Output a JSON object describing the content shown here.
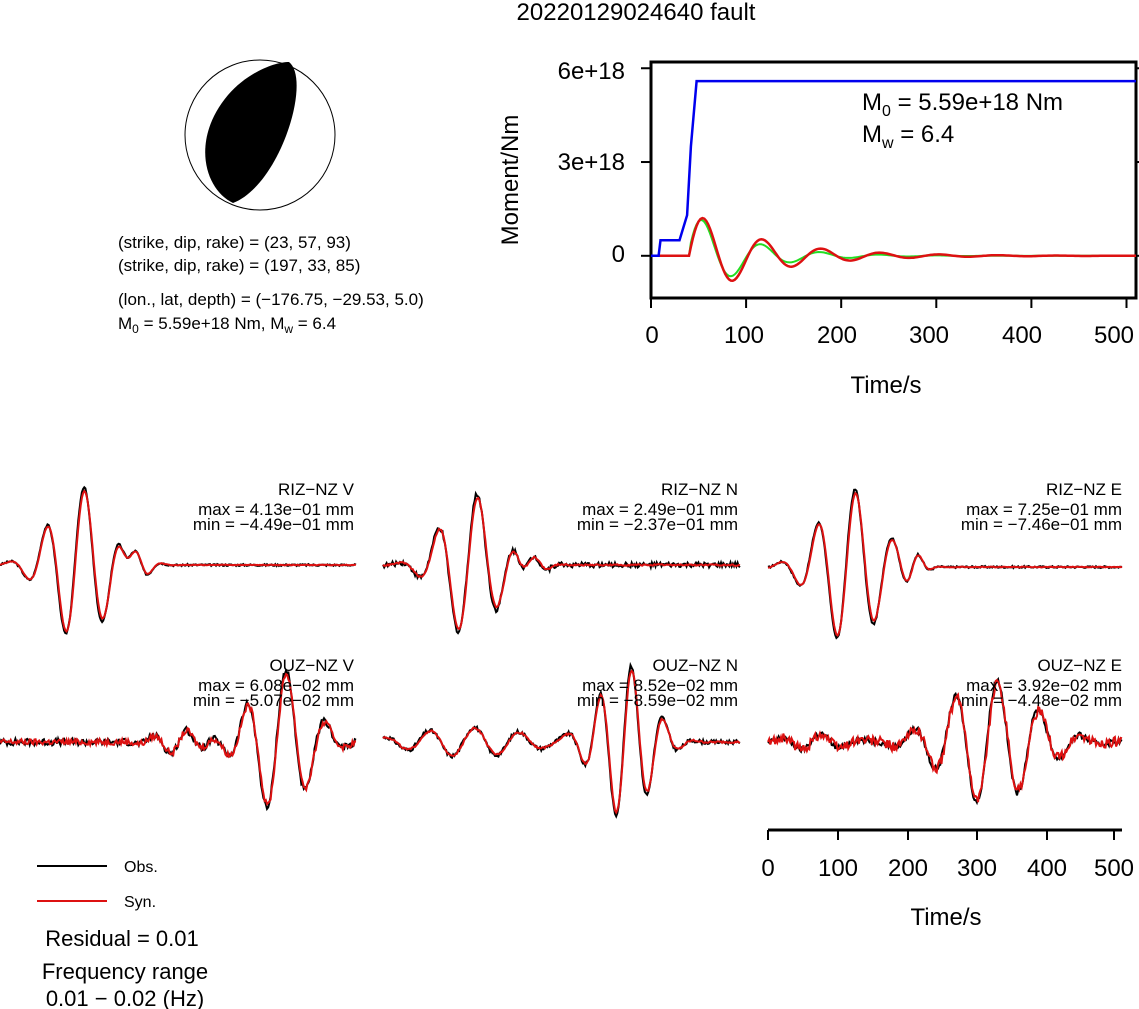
{
  "title": "20220129024640 fault",
  "colors": {
    "obs": "#000000",
    "syn": "#dd1111",
    "moment": "#0000ee",
    "stf_green": "#22dd22",
    "stf_red": "#dd1111"
  },
  "mechanism": {
    "line1": "(strike, dip, rake) = (23, 57, 93)",
    "line2": "(strike, dip, rake) = (197, 33, 85)",
    "line3": "(lon., lat, depth) = (−176.75, −29.53, 5.0)",
    "m0_label": "M",
    "m0_sub": "0",
    "m0_rest": " = 5.59e+18 Nm, M",
    "mw_sub": "w",
    "mw_rest": " = 6.4"
  },
  "moment_plot": {
    "ylabel": "Moment/Nm",
    "xlabel": "Time/s",
    "yticks": [
      "6e+18",
      "3e+18",
      "0"
    ],
    "xticks": [
      "0",
      "100",
      "200",
      "300",
      "400",
      "500"
    ],
    "m0_label": "M",
    "m0_sub": "0",
    "m0_rest": " = 5.59e+18 Nm",
    "mw_label": "M",
    "mw_sub": "w",
    "mw_rest": " = 6.4"
  },
  "chart_data": [
    {
      "type": "line",
      "xlim": [
        0,
        510
      ],
      "ylim": [
        -1.35e+18,
        6.2e+18
      ],
      "series": [
        {
          "x": [
            0,
            8,
            10,
            20,
            30,
            38,
            42,
            48,
            510
          ],
          "values": [
            0,
            0,
            5e+17,
            5e+17,
            5e+17,
            1.3e+18,
            3.5e+18,
            5.59e+18,
            5.59e+18
          ]
        }
      ]
    }
  ],
  "legend": {
    "obs": "Obs.",
    "syn": "Syn."
  },
  "residual": "Residual = 0.01",
  "frequency_label": "Frequency range",
  "frequency_value": "0.01 − 0.02 (Hz)",
  "time_axis": {
    "xlabel": "Time/s",
    "xticks": [
      "0",
      "100",
      "200",
      "300",
      "400",
      "500"
    ]
  },
  "panels": [
    {
      "station": "RIZ−NZ V",
      "max": "max = 4.13e−01 mm",
      "min": "min = −4.49e−01 mm"
    },
    {
      "station": "RIZ−NZ N",
      "max": "max = 2.49e−01 mm",
      "min": "min = −2.37e−01 mm"
    },
    {
      "station": "RIZ−NZ E",
      "max": "max = 7.25e−01 mm",
      "min": "min = −7.46e−01 mm"
    },
    {
      "station": "OUZ−NZ V",
      "max": "max = 6.08e−02 mm",
      "min": "min = −5.07e−02 mm"
    },
    {
      "station": "OUZ−NZ N",
      "max": "max = 8.52e−02 mm",
      "min": "min = −8.59e−02 mm"
    },
    {
      "station": "OUZ−NZ E",
      "max": "max = 3.92e−02 mm",
      "min": "min = −4.48e−02 mm"
    }
  ]
}
